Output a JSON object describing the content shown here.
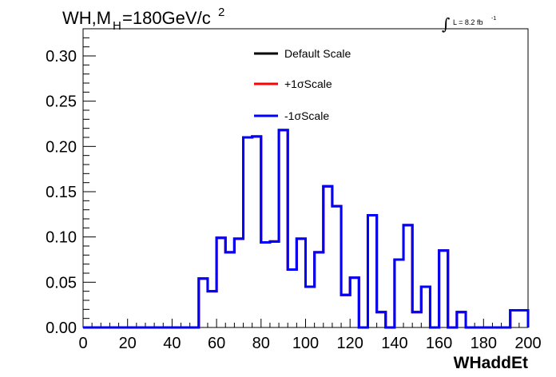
{
  "chart_data": {
    "type": "line",
    "title": {
      "prefix": "WH,M",
      "subscript": "H",
      "main": "=180GeV/c",
      "superscript": "2"
    },
    "lumi": {
      "integral_symbol": "∫",
      "text": "L = 8.2 fb",
      "superscript": "-1"
    },
    "xlabel": "WHaddEt",
    "ylabel": "",
    "xlim": [
      0,
      200
    ],
    "ylim": [
      0,
      0.33
    ],
    "x_ticks": [
      "0",
      "20",
      "40",
      "60",
      "80",
      "100",
      "120",
      "140",
      "160",
      "180",
      "200"
    ],
    "y_ticks": [
      "0.00",
      "0.05",
      "0.10",
      "0.15",
      "0.20",
      "0.25",
      "0.30"
    ],
    "bin_edges": [
      0,
      4,
      8,
      12,
      16,
      20,
      24,
      28,
      32,
      36,
      40,
      44,
      48,
      52,
      56,
      60,
      64,
      68,
      72,
      76,
      80,
      84,
      88,
      92,
      96,
      100,
      104,
      108,
      112,
      116,
      120,
      124,
      128,
      132,
      136,
      140,
      144,
      148,
      152,
      156,
      160,
      164,
      168,
      172,
      176,
      180,
      184,
      188,
      192,
      196,
      200
    ],
    "series": [
      {
        "name": "Default Scale",
        "color": "#000000",
        "values": [
          0,
          0,
          0,
          0,
          0,
          0,
          0,
          0,
          0,
          0,
          0,
          0,
          0,
          0.054,
          0.04,
          0.099,
          0.083,
          0.098,
          0.21,
          0.211,
          0.094,
          0.095,
          0.218,
          0.064,
          0.098,
          0.045,
          0.083,
          0.156,
          0.134,
          0.036,
          0.055,
          0,
          0.124,
          0.017,
          0,
          0.075,
          0.113,
          0.017,
          0.045,
          0,
          0.085,
          0,
          0.017,
          0,
          0,
          0,
          0,
          0,
          0.019,
          0.019
        ]
      },
      {
        "name": "+1σScale",
        "color": "#ff0000",
        "values": [
          0,
          0,
          0,
          0,
          0,
          0,
          0,
          0,
          0,
          0,
          0,
          0,
          0,
          0.054,
          0.04,
          0.099,
          0.083,
          0.098,
          0.21,
          0.211,
          0.094,
          0.095,
          0.218,
          0.064,
          0.098,
          0.045,
          0.083,
          0.156,
          0.134,
          0.036,
          0.055,
          0,
          0.124,
          0.017,
          0,
          0.075,
          0.113,
          0.017,
          0.045,
          0,
          0.085,
          0,
          0.017,
          0,
          0,
          0,
          0,
          0,
          0.019,
          0.019
        ]
      },
      {
        "name": "-1σScale",
        "color": "#0000ff",
        "values": [
          0,
          0,
          0,
          0,
          0,
          0,
          0,
          0,
          0,
          0,
          0,
          0,
          0,
          0.054,
          0.04,
          0.099,
          0.083,
          0.098,
          0.21,
          0.211,
          0.094,
          0.095,
          0.218,
          0.064,
          0.098,
          0.045,
          0.083,
          0.156,
          0.134,
          0.036,
          0.055,
          0,
          0.124,
          0.017,
          0,
          0.075,
          0.113,
          0.017,
          0.045,
          0,
          0.085,
          0,
          0.017,
          0,
          0,
          0,
          0,
          0,
          0.019,
          0.019
        ]
      }
    ],
    "legend_position": "top-center"
  }
}
